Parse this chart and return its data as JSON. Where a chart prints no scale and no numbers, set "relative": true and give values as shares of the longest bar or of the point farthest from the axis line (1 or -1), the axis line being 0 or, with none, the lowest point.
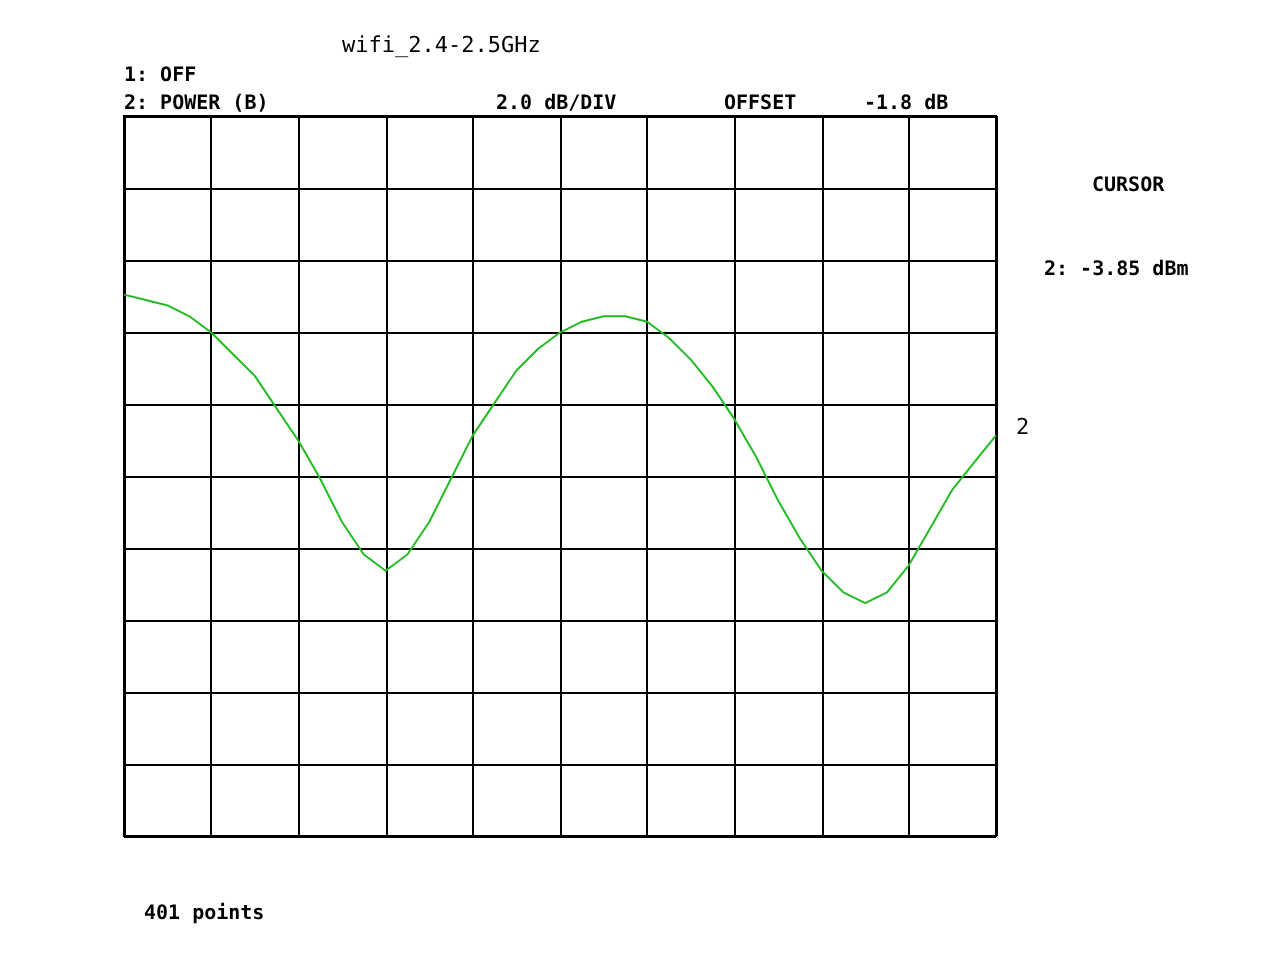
{
  "chart_data": {
    "type": "line",
    "title": "wifi_2.4-2.5GHz",
    "relative": true,
    "grid": true,
    "legend": false,
    "marker": "none",
    "line_style": "solid",
    "annotations": [
      "1: OFF",
      "2: POWER (B)",
      "2.0 dB/DIV",
      "OFFSET",
      "-1.8 dB",
      "CURSOR",
      "2: -3.85 dBm",
      "401 points"
    ],
    "categories": [
      null,
      null,
      null,
      null,
      null,
      null,
      null,
      null,
      null,
      null,
      null,
      null,
      null,
      null,
      null,
      null,
      null,
      null,
      null,
      null,
      null,
      null,
      null,
      null,
      null,
      null,
      null,
      null,
      null,
      null,
      null,
      null,
      null,
      null,
      null,
      null,
      null,
      null,
      null,
      null,
      null
    ],
    "series": [
      {
        "name": "2",
        "color": "#22bb22",
        "values": [
          1,
          0.99,
          0.98,
          0.96,
          0.93,
          0.89,
          0.85,
          0.79,
          0.73,
          0.66,
          0.58,
          0.52,
          0.49,
          0.52,
          0.58,
          0.66,
          0.74,
          0.8,
          0.86,
          0.9,
          0.93,
          0.95,
          0.96,
          0.96,
          0.95,
          0.92,
          0.88,
          0.83,
          0.77,
          0.7,
          0.62,
          0.55,
          0.49,
          0.45,
          0.43,
          0.45,
          0.5,
          0.57,
          0.64,
          0.69,
          0.74
        ]
      }
    ]
  }
}
